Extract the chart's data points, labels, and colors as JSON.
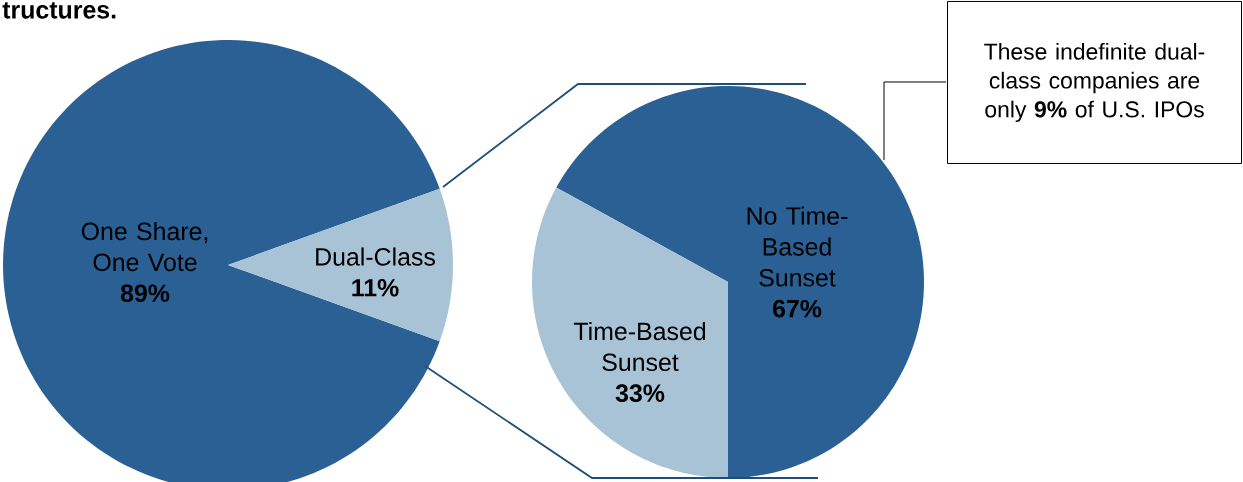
{
  "chart_data": [
    {
      "type": "pie",
      "title": "tructures.",
      "categories": [
        "One Share, One Vote",
        "Dual-Class"
      ],
      "values": [
        89,
        11
      ],
      "value_labels": [
        "89%",
        "11%"
      ],
      "colors": [
        "#2b6095",
        "#a8c3d6"
      ]
    },
    {
      "type": "pie",
      "categories": [
        "No Time-Based Sunset",
        "Time-Based Sunset"
      ],
      "values": [
        67,
        33
      ],
      "value_labels": [
        "67%",
        "33%"
      ],
      "colors": [
        "#2b6095",
        "#a8c3d6"
      ],
      "annotations": [
        "These indefinite dual-class companies are only **9%** of U.S. IPOs"
      ]
    }
  ]
}
